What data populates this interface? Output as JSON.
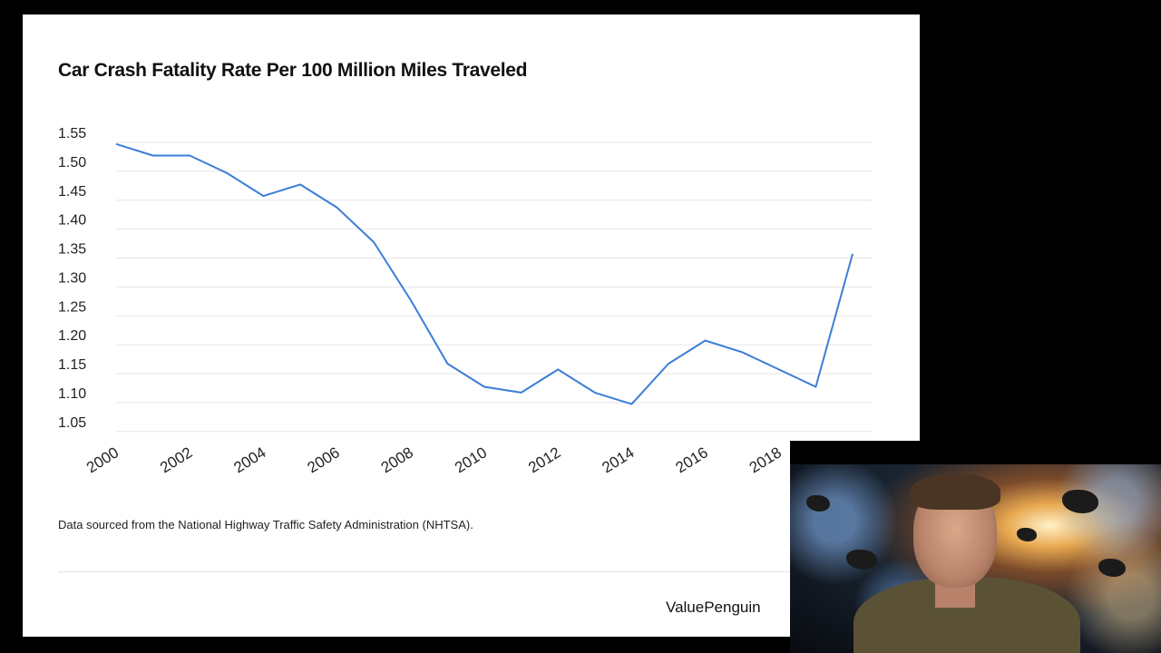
{
  "slide": {
    "title": "Car Crash Fatality Rate Per 100 Million Miles Traveled",
    "source_note": "Data sourced from the National Highway Traffic Safety Administration (NHTSA).",
    "brand": "ValuePenguin"
  },
  "chart_data": {
    "type": "line",
    "title": "Car Crash Fatality Rate Per 100 Million Miles Traveled",
    "xlabel": "",
    "ylabel": "",
    "x": [
      2000,
      2001,
      2002,
      2003,
      2004,
      2005,
      2006,
      2007,
      2008,
      2009,
      2010,
      2011,
      2012,
      2013,
      2014,
      2015,
      2016,
      2017,
      2018,
      2019,
      2020
    ],
    "series": [
      {
        "values": [
          1.53,
          1.51,
          1.51,
          1.48,
          1.44,
          1.46,
          1.42,
          1.36,
          1.26,
          1.15,
          1.11,
          1.1,
          1.14,
          1.1,
          1.08,
          1.15,
          1.19,
          1.17,
          1.14,
          1.11,
          1.34
        ],
        "color": "#3b7dd8"
      }
    ],
    "xticks": [
      "2000",
      "2002",
      "2004",
      "2006",
      "2008",
      "2010",
      "2012",
      "2014",
      "2016",
      "2018"
    ],
    "yticks": [
      "1.05",
      "1.10",
      "1.15",
      "1.20",
      "1.25",
      "1.30",
      "1.35",
      "1.40",
      "1.45",
      "1.50",
      "1.55"
    ],
    "ylim": [
      1.03,
      1.55
    ],
    "xlim": [
      2000,
      2020
    ],
    "grid": true,
    "legend": "none"
  },
  "webcam": {
    "background": "asteroid-explosion"
  }
}
